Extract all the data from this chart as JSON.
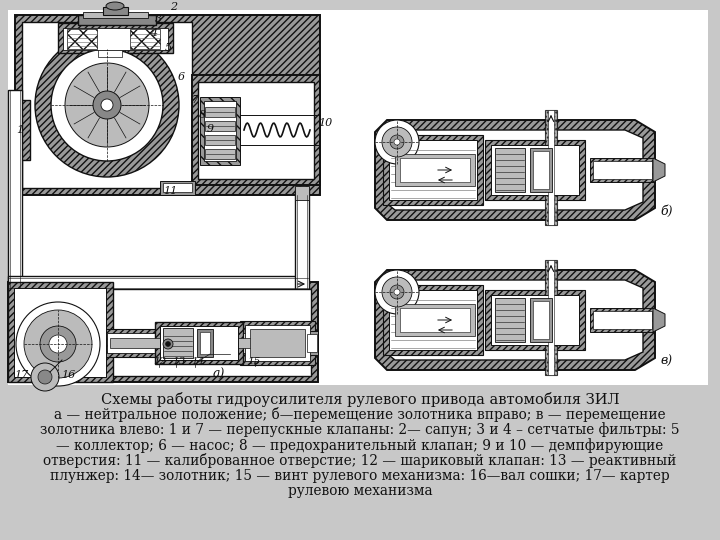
{
  "title_line1": "Схемы работы гидроусилителя рулевого привода автомобиля ЗИЛ",
  "caption_lines": [
    "а — нейтральное положение; б—перемещение золотника вправо; в — перемещение",
    "золотника влево: 1 и 7 — перепускные клапаны: 2— сапун; 3 и 4 – сетчатые фильтры: 5",
    "— коллектор; 6 — насос; 8 — предохранительный клапан; 9 и 10 — демпфирующие",
    "отверстия: 11 — калиброванное отверстие; 12 — шариковый клапан: 13 — реактивный",
    "плунжер: 14— золотник; 15 — винт рулевого механизма: 16—вал сошки; 17— картер",
    "рулевою механизма"
  ],
  "bg_color": "#c8c8c8",
  "diagram_bg": "#ffffff",
  "text_color": "#111111",
  "title_fontsize": 10.5,
  "caption_fontsize": 9.8,
  "fig_width": 7.2,
  "fig_height": 5.4,
  "dpi": 100
}
